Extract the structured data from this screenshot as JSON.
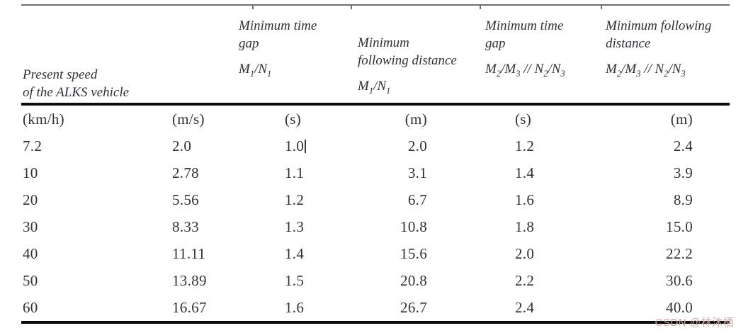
{
  "table": {
    "header": {
      "speed_col": {
        "lines": [
          "Present speed",
          "of the ALKS vehicle"
        ]
      },
      "cols": [
        {
          "title_lines": [
            "Minimum time",
            "gap"
          ],
          "sub": "M~1~/N~1~"
        },
        {
          "title_lines": [
            "Minimum",
            "following distance"
          ],
          "sub": "M~1~/N~1~"
        },
        {
          "title_lines": [
            "Minimum time",
            "gap"
          ],
          "sub": "M~2~/M~3~ // N~2~/N~3~"
        },
        {
          "title_lines": [
            "Minimum following",
            "distance"
          ],
          "sub": "M~2~/M~3~ // N~2~/N~3~"
        }
      ]
    },
    "units_row": [
      "(km/h)",
      "(m/s)",
      "(s)",
      "(m)",
      "(s)",
      "(m)"
    ],
    "rows": [
      [
        "7.2",
        "2.0",
        "1.0",
        "2.0",
        "1.2",
        "2.4"
      ],
      [
        "10",
        "2.78",
        "1.1",
        "3.1",
        "1.4",
        "3.9"
      ],
      [
        "20",
        "5.56",
        "1.2",
        "6.7",
        "1.6",
        "8.9"
      ],
      [
        "30",
        "8.33",
        "1.3",
        "10.8",
        "1.8",
        "15.0"
      ],
      [
        "40",
        "11.11",
        "1.4",
        "15.6",
        "2.0",
        "22.2"
      ],
      [
        "50",
        "13.89",
        "1.5",
        "20.8",
        "2.2",
        "30.6"
      ],
      [
        "60",
        "16.67",
        "1.6",
        "26.7",
        "2.4",
        "40.0"
      ]
    ],
    "text_cursor": {
      "row": 0,
      "col": 2
    }
  },
  "watermark": {
    "text": "CSDN @林沐栖",
    "color": "#c9a6a6"
  },
  "colors": {
    "text": "#30303a",
    "rule_heavy": "#0d0d0d",
    "rule_light": "#6e6e6e"
  }
}
